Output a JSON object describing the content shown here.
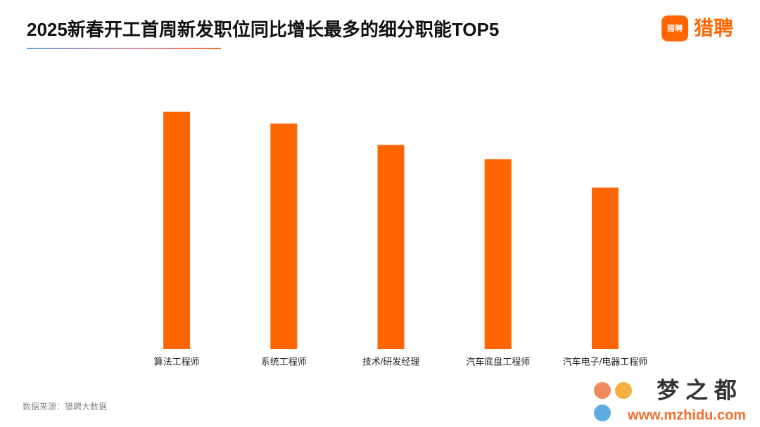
{
  "chart_data": {
    "type": "bar",
    "title": "2025新春开工首周新发职位同比增长最多的细分职能TOP5",
    "categories": [
      "算法工程师",
      "系统工程师",
      "技术/研发经理",
      "汽车底盘工程师",
      "汽车电子/电器工程师"
    ],
    "values": [
      100,
      95,
      86,
      80,
      68
    ],
    "color": "#ff6600"
  },
  "source": "数据来源：猎聘大数据",
  "logo": {
    "icon": "猎聘",
    "text": "猎聘"
  },
  "watermark": {
    "name": "梦 之 都",
    "url": "www.mzhidu.com"
  }
}
